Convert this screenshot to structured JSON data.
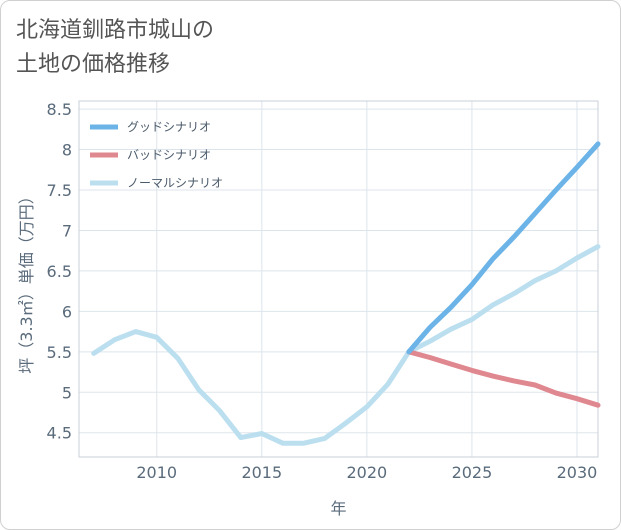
{
  "header": {
    "title_line1": "北海道釧路市城山の",
    "title_line2": "土地の価格推移"
  },
  "chart_data": {
    "type": "line",
    "title": "北海道釧路市城山の土地の価格推移",
    "xlabel": "年",
    "ylabel": "坪（3.3㎡）単価（万円）",
    "xlim": [
      2006.3,
      2031
    ],
    "ylim": [
      4.2,
      8.6
    ],
    "x_ticks": [
      2010,
      2015,
      2020,
      2025,
      2030
    ],
    "y_ticks": [
      4.5,
      5,
      5.5,
      6,
      6.5,
      7,
      7.5,
      8,
      8.5
    ],
    "grid": true,
    "legend_position": "top-left",
    "series": [
      {
        "name": "グッドシナリオ",
        "color": "#6cb4e8",
        "x": [
          2022,
          2023,
          2024,
          2025,
          2026,
          2027,
          2028,
          2029,
          2030,
          2031
        ],
        "y": [
          5.5,
          5.8,
          6.05,
          6.33,
          6.65,
          6.92,
          7.21,
          7.5,
          7.78,
          8.07
        ]
      },
      {
        "name": "バッドシナリオ",
        "color": "#e0888f",
        "x": [
          2022,
          2023,
          2024,
          2025,
          2026,
          2027,
          2028,
          2029,
          2030,
          2031
        ],
        "y": [
          5.5,
          5.43,
          5.35,
          5.27,
          5.2,
          5.14,
          5.09,
          4.99,
          4.92,
          4.84
        ]
      },
      {
        "name": "ノーマルシナリオ",
        "color": "#bcdff0",
        "x": [
          2007,
          2008,
          2009,
          2010,
          2011,
          2012,
          2013,
          2014,
          2015,
          2016,
          2017,
          2018,
          2019,
          2020,
          2021,
          2022,
          2023,
          2024,
          2025,
          2026,
          2027,
          2028,
          2029,
          2030,
          2031
        ],
        "y": [
          5.48,
          5.65,
          5.75,
          5.68,
          5.42,
          5.03,
          4.77,
          4.44,
          4.49,
          4.37,
          4.37,
          4.43,
          4.62,
          4.82,
          5.1,
          5.5,
          5.63,
          5.78,
          5.9,
          6.08,
          6.22,
          6.38,
          6.5,
          6.66,
          6.8
        ]
      }
    ]
  }
}
